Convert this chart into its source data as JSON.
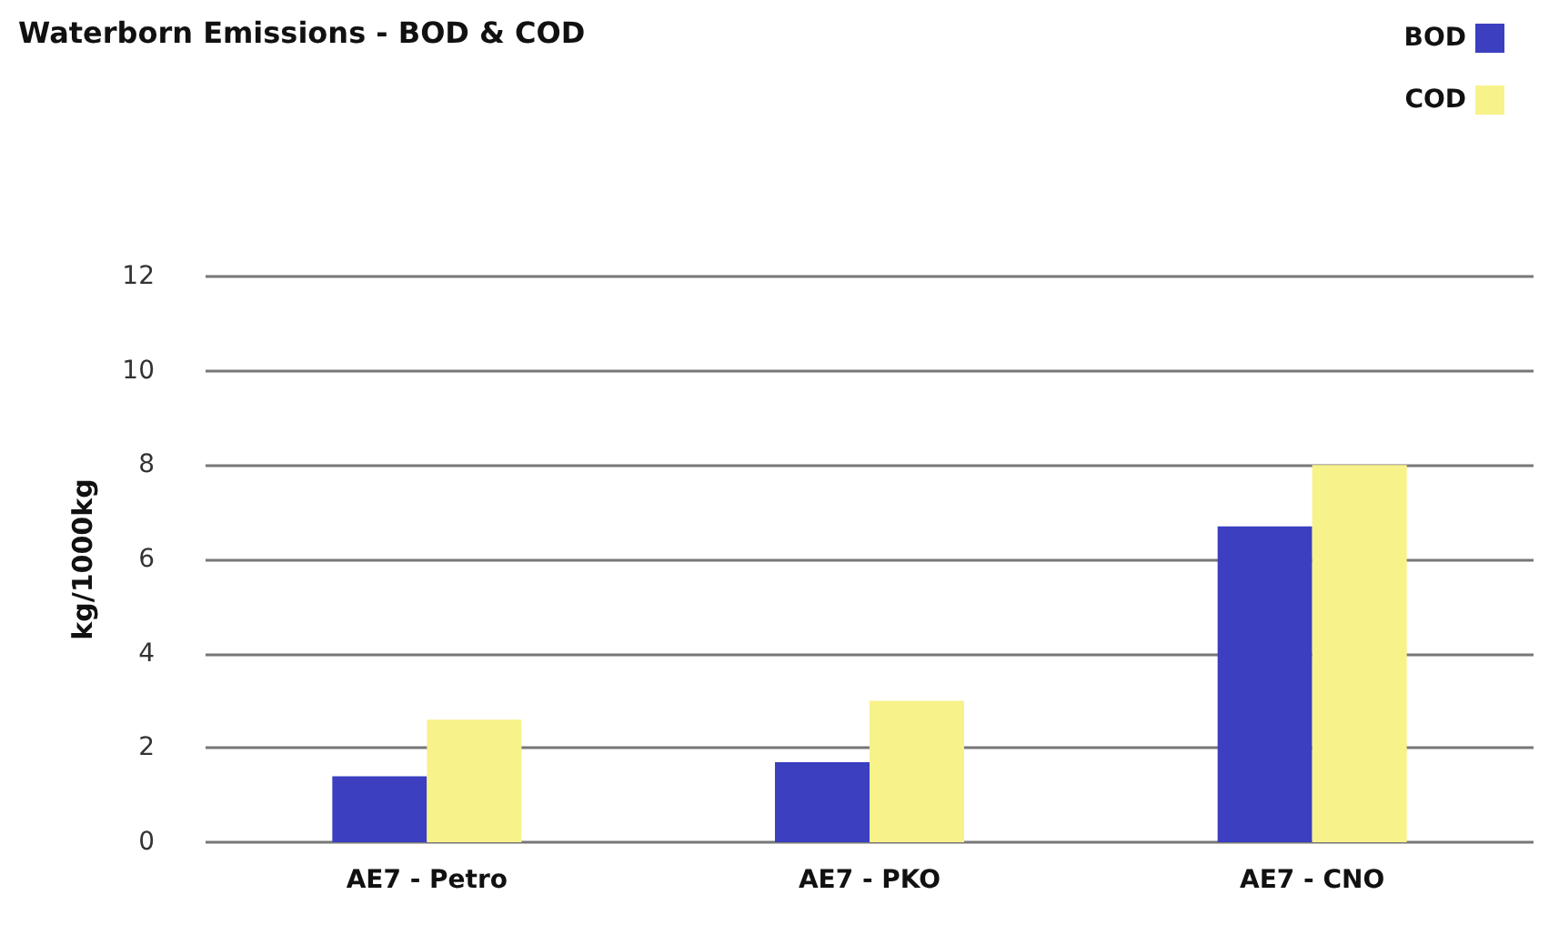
{
  "chart_data": {
    "type": "bar",
    "title": "Waterborn Emissions - BOD & COD",
    "ylabel": "kg/1000kg",
    "categories": [
      "AE7 - Petro",
      "AE7 - PKO",
      "AE7 - CNO"
    ],
    "series": [
      {
        "name": "BOD",
        "color": "#3b3fc0",
        "values": [
          1.4,
          1.7,
          6.7
        ]
      },
      {
        "name": "COD",
        "color": "#f8f28a",
        "values": [
          2.6,
          3.0,
          8.0
        ]
      }
    ],
    "ylim": [
      0,
      12
    ],
    "yticks": [
      0,
      2,
      4,
      6,
      8,
      10,
      12
    ],
    "grid": "y",
    "legend": "top right"
  }
}
